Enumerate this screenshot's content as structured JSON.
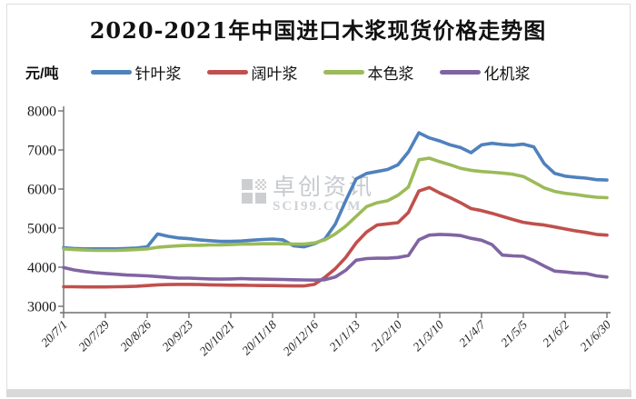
{
  "chart_data": {
    "type": "line",
    "title": "2020-2021年中国进口木浆现货价格走势图",
    "unit_label": "元/吨",
    "ylim": [
      3000,
      8000
    ],
    "y_ticks": [
      8000,
      7000,
      6000,
      5000,
      4000,
      3000
    ],
    "grid": false,
    "legend_position": "top",
    "x_note": "weekly points, 4 points per labeled 28-day interval",
    "categories": [
      "20/7/1",
      "20/7/29",
      "20/8/26",
      "20/9/23",
      "20/10/21",
      "20/11/18",
      "20/12/16",
      "21/1/13",
      "21/2/10",
      "21/3/10",
      "21/4/7",
      "21/5/5",
      "21/6/2",
      "21/6/30"
    ],
    "series": [
      {
        "name": "针叶浆",
        "color": "#4F81BD",
        "values": [
          4500,
          4480,
          4470,
          4470,
          4470,
          4470,
          4480,
          4490,
          4520,
          4850,
          4790,
          4750,
          4730,
          4700,
          4680,
          4660,
          4660,
          4670,
          4690,
          4710,
          4720,
          4700,
          4550,
          4520,
          4600,
          4720,
          5100,
          5700,
          6260,
          6400,
          6450,
          6500,
          6620,
          6950,
          7440,
          7310,
          7230,
          7130,
          7060,
          6930,
          7130,
          7170,
          7140,
          7120,
          7150,
          7080,
          6650,
          6400,
          6330,
          6300,
          6280,
          6240,
          6230
        ]
      },
      {
        "name": "阔叶浆",
        "color": "#C0504D",
        "values": [
          3500,
          3500,
          3495,
          3495,
          3495,
          3500,
          3505,
          3515,
          3530,
          3550,
          3555,
          3560,
          3560,
          3555,
          3550,
          3545,
          3540,
          3540,
          3535,
          3530,
          3530,
          3525,
          3520,
          3520,
          3560,
          3740,
          3960,
          4250,
          4620,
          4900,
          5080,
          5110,
          5140,
          5400,
          5950,
          6040,
          5900,
          5780,
          5650,
          5500,
          5450,
          5380,
          5300,
          5220,
          5150,
          5110,
          5080,
          5030,
          4980,
          4930,
          4890,
          4840,
          4820
        ]
      },
      {
        "name": "本色浆",
        "color": "#9BBB59",
        "values": [
          4470,
          4450,
          4440,
          4430,
          4430,
          4430,
          4440,
          4450,
          4470,
          4510,
          4530,
          4550,
          4560,
          4560,
          4570,
          4570,
          4580,
          4590,
          4590,
          4600,
          4600,
          4600,
          4590,
          4590,
          4620,
          4700,
          4850,
          5050,
          5300,
          5550,
          5650,
          5700,
          5840,
          6050,
          6750,
          6790,
          6700,
          6620,
          6530,
          6480,
          6450,
          6430,
          6410,
          6380,
          6320,
          6180,
          6030,
          5940,
          5890,
          5860,
          5820,
          5790,
          5780
        ]
      },
      {
        "name": "化机浆",
        "color": "#8064A2",
        "values": [
          3990,
          3930,
          3890,
          3860,
          3840,
          3820,
          3800,
          3790,
          3780,
          3760,
          3740,
          3720,
          3720,
          3710,
          3700,
          3695,
          3700,
          3710,
          3700,
          3695,
          3690,
          3685,
          3680,
          3675,
          3670,
          3680,
          3750,
          3920,
          4180,
          4220,
          4230,
          4230,
          4250,
          4300,
          4700,
          4820,
          4840,
          4830,
          4810,
          4740,
          4690,
          4580,
          4310,
          4290,
          4280,
          4170,
          4030,
          3900,
          3880,
          3850,
          3840,
          3780,
          3750
        ]
      }
    ]
  },
  "watermark": {
    "cn": "卓创资讯",
    "en": "SCI99.COM"
  }
}
